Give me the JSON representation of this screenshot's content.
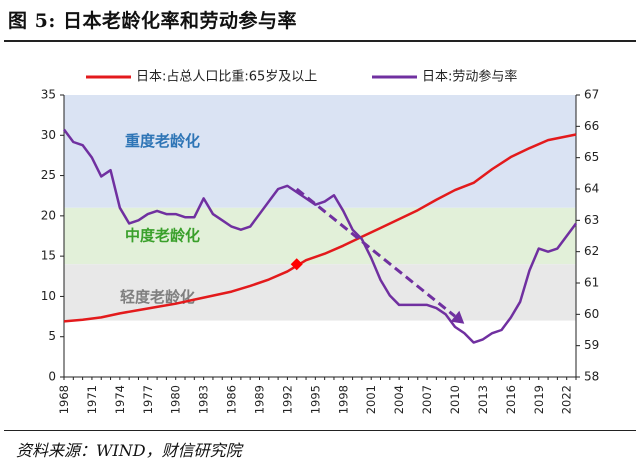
{
  "header": {
    "title": "图 5:  日本老龄化率和劳动参与率"
  },
  "footer": {
    "source": "资料来源：WIND，财信研究院"
  },
  "colors": {
    "aging_series": "#e31a1c",
    "participation_series": "#7030a0",
    "severe_band": "#dae3f3",
    "moderate_band": "#e2f0d9",
    "light_band": "#e8e8e8",
    "severe_label": "#2e75b6",
    "moderate_label": "#3aa02b",
    "light_label": "#7f7f7f",
    "marker": "#ff0000",
    "trend_arrow": "#7030a0"
  },
  "chart_data": {
    "type": "line",
    "x_tick_labels": [
      "1968",
      "1971",
      "1974",
      "1977",
      "1980",
      "1983",
      "1986",
      "1989",
      "1992",
      "1995",
      "1998",
      "2001",
      "2004",
      "2007",
      "2010",
      "2013",
      "2016",
      "2019",
      "2022"
    ],
    "xlim": [
      1968,
      2023
    ],
    "y_left": {
      "lim": [
        0,
        35
      ],
      "ticks": [
        "0",
        "5",
        "10",
        "15",
        "20",
        "25",
        "30",
        "35"
      ]
    },
    "y_right": {
      "lim": [
        58,
        67
      ],
      "ticks": [
        "58",
        "59",
        "60",
        "61",
        "62",
        "63",
        "64",
        "65",
        "66",
        "67"
      ]
    },
    "legend": {
      "position": "top",
      "entries": [
        "日本:占总人口比重:65岁及以上",
        "日本:劳动参与率"
      ]
    },
    "bands": [
      {
        "label": "重度老龄化",
        "from": 21,
        "to": 35
      },
      {
        "label": "中度老龄化",
        "from": 14,
        "to": 21
      },
      {
        "label": "轻度老龄化",
        "from": 7,
        "to": 14
      }
    ],
    "series": [
      {
        "name": "日本:占总人口比重:65岁及以上",
        "axis": "left",
        "x": [
          1968,
          1970,
          1972,
          1974,
          1976,
          1978,
          1980,
          1982,
          1984,
          1986,
          1988,
          1990,
          1992,
          1993,
          1994,
          1996,
          1998,
          2000,
          2002,
          2004,
          2006,
          2008,
          2010,
          2012,
          2014,
          2016,
          2018,
          2020,
          2023
        ],
        "y": [
          6.9,
          7.1,
          7.4,
          7.9,
          8.3,
          8.7,
          9.1,
          9.6,
          10.1,
          10.6,
          11.3,
          12.1,
          13.1,
          13.8,
          14.5,
          15.3,
          16.3,
          17.4,
          18.5,
          19.6,
          20.7,
          22.0,
          23.2,
          24.1,
          25.8,
          27.3,
          28.4,
          29.4,
          30.1
        ]
      },
      {
        "name": "日本:劳动参与率",
        "axis": "right",
        "x": [
          1968,
          1969,
          1970,
          1971,
          1972,
          1973,
          1974,
          1975,
          1976,
          1977,
          1978,
          1979,
          1980,
          1981,
          1982,
          1983,
          1984,
          1985,
          1986,
          1987,
          1988,
          1989,
          1990,
          1991,
          1992,
          1993,
          1994,
          1995,
          1996,
          1997,
          1998,
          1999,
          2000,
          2001,
          2002,
          2003,
          2004,
          2005,
          2006,
          2007,
          2008,
          2009,
          2010,
          2011,
          2012,
          2013,
          2014,
          2015,
          2016,
          2017,
          2018,
          2019,
          2020,
          2021,
          2022,
          2023
        ],
        "y": [
          65.9,
          65.5,
          65.4,
          65.0,
          64.4,
          64.6,
          63.4,
          62.9,
          63.0,
          63.2,
          63.3,
          63.2,
          63.2,
          63.1,
          63.1,
          63.7,
          63.2,
          63.0,
          62.8,
          62.7,
          62.8,
          63.2,
          63.6,
          64.0,
          64.1,
          63.9,
          63.7,
          63.5,
          63.6,
          63.8,
          63.3,
          62.7,
          62.4,
          61.8,
          61.1,
          60.6,
          60.3,
          60.3,
          60.3,
          60.3,
          60.2,
          60.0,
          59.6,
          59.4,
          59.1,
          59.2,
          59.4,
          59.5,
          59.9,
          60.4,
          61.4,
          62.1,
          62.0,
          62.1,
          62.5,
          62.9
        ]
      }
    ],
    "annotations": [
      {
        "type": "marker",
        "series": "日本:占总人口比重:65岁及以上",
        "x": 1993,
        "y": 14
      },
      {
        "type": "trend-arrow",
        "axis": "right",
        "from": [
          1993,
          64.0
        ],
        "to": [
          2011,
          59.7
        ]
      }
    ]
  }
}
